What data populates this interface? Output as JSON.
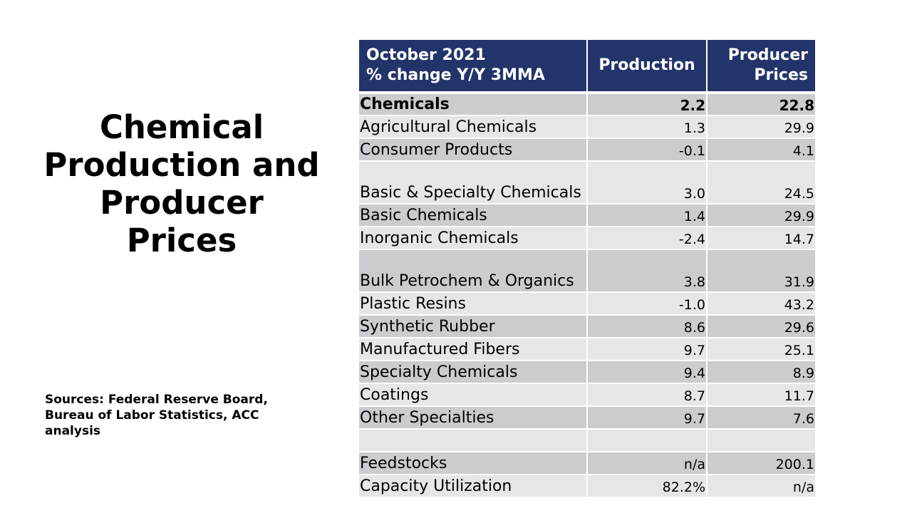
{
  "slide": {
    "title": "Chemical Production and Producer Prices",
    "sources": "Sources: Federal Reserve Board, Bureau of Labor Statistics, ACC analysis"
  },
  "table": {
    "header": {
      "period_line1": "October 2021",
      "period_line2": "% change Y/Y 3MMA",
      "production": "Production",
      "producer_prices_line1": "Producer",
      "producer_prices_line2": "Prices"
    },
    "rows": [
      {
        "label": "Chemicals",
        "production": "2.2",
        "prices": "22.8",
        "bold": true
      },
      {
        "label": "Agricultural Chemicals",
        "production": "1.3",
        "prices": "29.9"
      },
      {
        "label": "Consumer Products",
        "production": "-0.1",
        "prices": "4.1"
      },
      {
        "label": "Basic & Specialty Chemicals",
        "production": "3.0",
        "prices": "24.5",
        "two_line": true
      },
      {
        "label": "Basic Chemicals",
        "production": "1.4",
        "prices": "29.9"
      },
      {
        "label": "Inorganic Chemicals",
        "production": "-2.4",
        "prices": "14.7"
      },
      {
        "label": "Bulk Petrochem & Organics",
        "production": "3.8",
        "prices": "31.9",
        "two_line": true
      },
      {
        "label": "Plastic Resins",
        "production": "-1.0",
        "prices": "43.2"
      },
      {
        "label": "Synthetic Rubber",
        "production": "8.6",
        "prices": "29.6"
      },
      {
        "label": "Manufactured Fibers",
        "production": "9.7",
        "prices": "25.1"
      },
      {
        "label": "Specialty Chemicals",
        "production": "9.4",
        "prices": "8.9"
      },
      {
        "label": "Coatings",
        "production": "8.7",
        "prices": "11.7"
      },
      {
        "label": "Other Specialties",
        "production": "9.7",
        "prices": "7.6"
      },
      {
        "label": "",
        "production": "",
        "prices": ""
      },
      {
        "label": "Feedstocks",
        "production": "n/a",
        "prices": "200.1"
      },
      {
        "label": "Capacity Utilization",
        "production": "82.2%",
        "prices": "n/a"
      }
    ]
  }
}
